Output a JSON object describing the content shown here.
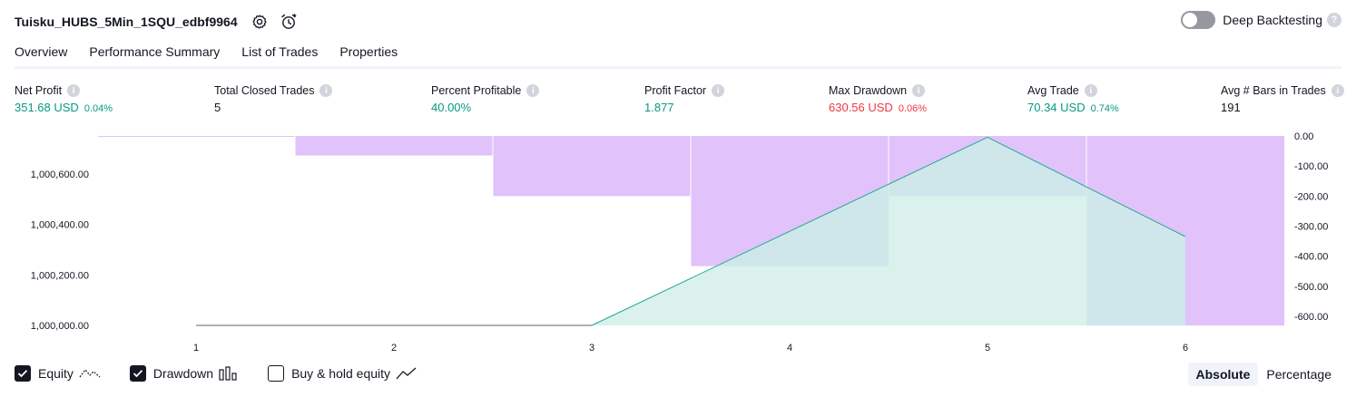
{
  "header": {
    "title": "Tuisku_HUBS_5Min_1SQU_edbf9964",
    "deep_backtesting_label": "Deep Backtesting",
    "help_glyph": "?"
  },
  "tabs": [
    {
      "label": "Overview",
      "active": true
    },
    {
      "label": "Performance Summary",
      "active": false
    },
    {
      "label": "List of Trades",
      "active": false
    },
    {
      "label": "Properties",
      "active": false
    }
  ],
  "metrics": [
    {
      "label": "Net Profit",
      "value": "351.68 USD",
      "pct": "0.04%",
      "color": "green"
    },
    {
      "label": "Total Closed Trades",
      "value": "5",
      "pct": "",
      "color": "plain"
    },
    {
      "label": "Percent Profitable",
      "value": "40.00%",
      "pct": "",
      "color": "green"
    },
    {
      "label": "Profit Factor",
      "value": "1.877",
      "pct": "",
      "color": "green"
    },
    {
      "label": "Max Drawdown",
      "value": "630.56 USD",
      "pct": "0.06%",
      "color": "red"
    },
    {
      "label": "Avg Trade",
      "value": "70.34 USD",
      "pct": "0.74%",
      "color": "green"
    },
    {
      "label": "Avg # Bars in Trades",
      "value": "191",
      "pct": "",
      "color": "plain"
    }
  ],
  "chart_data": {
    "type": "area",
    "x": [
      1,
      2,
      3,
      4,
      5,
      6
    ],
    "x_ticks": [
      "1",
      "2",
      "3",
      "4",
      "5",
      "6"
    ],
    "y_left_ticks": [
      "1,000,000.00",
      "1,000,200.00",
      "1,000,400.00",
      "1,000,600.00"
    ],
    "y_left_tick_values": [
      1000000,
      1000200,
      1000400,
      1000600
    ],
    "y_left_range": [
      1000000,
      1000750
    ],
    "y_right_ticks": [
      "0.00",
      "-100.00",
      "-200.00",
      "-300.00",
      "-400.00",
      "-500.00",
      "-600.00"
    ],
    "y_right_tick_values": [
      0,
      -100,
      -200,
      -300,
      -400,
      -500,
      -600
    ],
    "y_right_range": [
      -630,
      0
    ],
    "series": [
      {
        "name": "Equity",
        "x": [
          1,
          3,
          5,
          6
        ],
        "values": [
          1000000,
          1000000,
          1000745,
          1000351.68
        ]
      },
      {
        "name": "Drawdown",
        "bars": [
          {
            "x_from": 0.5,
            "x_to": 1.5,
            "value": -2
          },
          {
            "x_from": 1.5,
            "x_to": 2.5,
            "value": -65
          },
          {
            "x_from": 2.5,
            "x_to": 3.5,
            "value": -200
          },
          {
            "x_from": 3.5,
            "x_to": 4.5,
            "value": -433
          },
          {
            "x_from": 4.5,
            "x_to": 5.5,
            "value": -200
          },
          {
            "x_from": 5.5,
            "x_to": 6.5,
            "value": -630.56
          }
        ]
      }
    ],
    "colors": {
      "equity_line": "#22ab94",
      "equity_fill": "#d4efe9",
      "drawdown": "#e1c2fb",
      "overlap": "#b7b9ed",
      "baseline": "#9598a1"
    }
  },
  "legend": [
    {
      "label": "Equity",
      "checked": true,
      "icon": "equity-line-icon"
    },
    {
      "label": "Drawdown",
      "checked": true,
      "icon": "drawdown-bars-icon"
    },
    {
      "label": "Buy & hold equity",
      "checked": false,
      "icon": "buy-hold-line-icon"
    }
  ],
  "view_mode": {
    "absolute": "Absolute",
    "percentage": "Percentage",
    "selected": "Absolute"
  }
}
